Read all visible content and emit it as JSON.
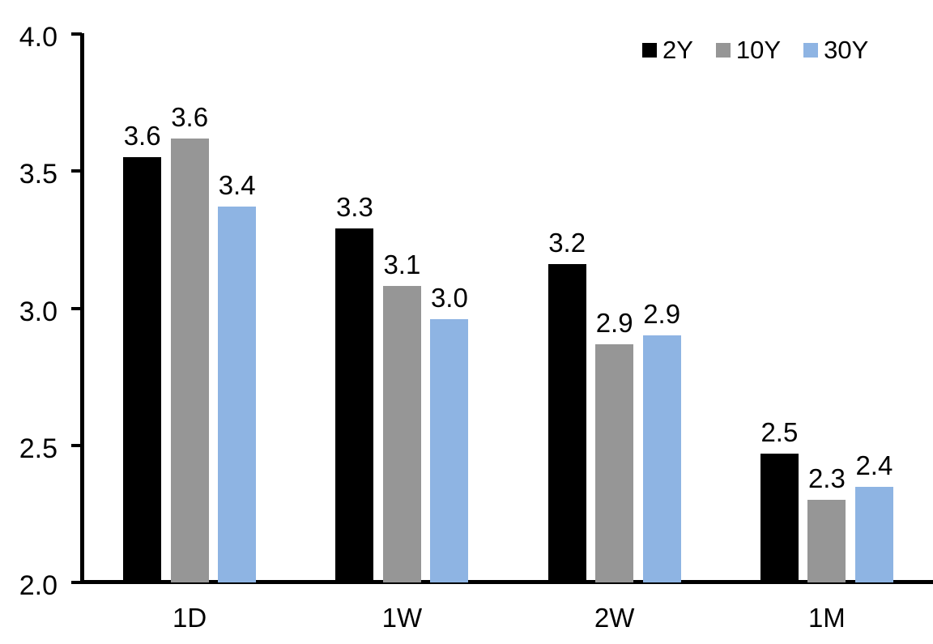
{
  "chart_data": {
    "type": "bar",
    "title": "",
    "xlabel": "",
    "ylabel": "",
    "categories": [
      "1D",
      "1W",
      "2W",
      "1M"
    ],
    "series": [
      {
        "name": "2Y",
        "color": "#000000",
        "values": [
          3.55,
          3.29,
          3.16,
          2.47
        ],
        "labels": [
          "3.6",
          "3.3",
          "3.2",
          "2.5"
        ]
      },
      {
        "name": "10Y",
        "color": "#969696",
        "values": [
          3.62,
          3.08,
          2.87,
          2.3
        ],
        "labels": [
          "3.6",
          "3.1",
          "2.9",
          "2.3"
        ]
      },
      {
        "name": "30Y",
        "color": "#8EB4E3",
        "values": [
          3.37,
          2.96,
          2.9,
          2.35
        ],
        "labels": [
          "3.4",
          "3.0",
          "2.9",
          "2.4"
        ]
      }
    ],
    "ylim": [
      2.0,
      4.0
    ],
    "yticks": [
      2.0,
      2.5,
      3.0,
      3.5,
      4.0
    ],
    "ytick_labels": [
      "2.0",
      "2.5",
      "3.0",
      "3.5",
      "4.0"
    ],
    "grid": false,
    "legend_position": "top-right",
    "data_label_position": "outside-end"
  }
}
